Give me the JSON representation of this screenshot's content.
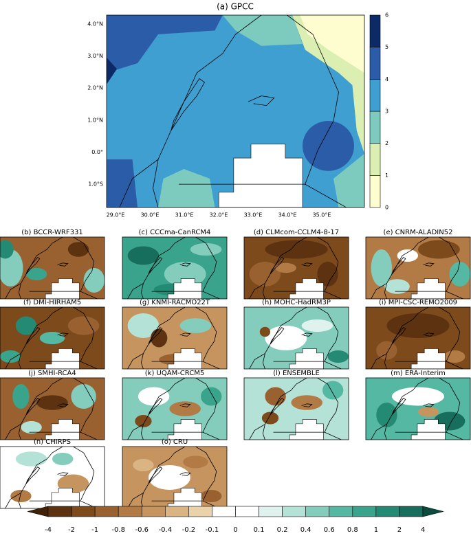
{
  "main_panel": {
    "title": "(a) GPCC",
    "x_labels": [
      "29.0°E",
      "30.0°E",
      "31.0°E",
      "32.0°E",
      "33.0°E",
      "34.0°E",
      "35.0°E"
    ],
    "y_labels": [
      "4.0°N",
      "3.0°N",
      "2.0°N",
      "1.0°N",
      "0.0°",
      "1.0°S"
    ],
    "colorbar": {
      "ticks": [
        0,
        1,
        2,
        3,
        4,
        5,
        6
      ],
      "colors": [
        "#fdfdcf",
        "#dcefb3",
        "#7dcbbf",
        "#3f9fd0",
        "#2b5ca8",
        "#0b2a66"
      ]
    }
  },
  "panels": [
    {
      "title": "(b) BCCR-WRF331"
    },
    {
      "title": "(c) CCCma-CanRCM4"
    },
    {
      "title": "(d) CLMcom-CCLM4-8-17"
    },
    {
      "title": "(e) CNRM-ALADIN52"
    },
    {
      "title": "(f) DMI-HIRHAM5"
    },
    {
      "title": "(g) KNMI-RACMO22T"
    },
    {
      "title": "(h) MOHC-HadRM3P"
    },
    {
      "title": "(i) MPI-CSC-REMO2009"
    },
    {
      "title": "(j) SMHI-RCA4"
    },
    {
      "title": "(k) UQAM-CRCM5"
    },
    {
      "title": "(l) ENSEMBLE"
    },
    {
      "title": "(m) ERA-Interim"
    },
    {
      "title": "(n) CHIRPS"
    },
    {
      "title": "(o) CRU"
    }
  ],
  "colorbar": {
    "ticks": [
      -4,
      -2,
      -1,
      -0.8,
      -0.6,
      -0.4,
      -0.2,
      -0.1,
      0,
      0.1,
      0.2,
      0.4,
      0.6,
      0.8,
      1,
      2,
      4
    ],
    "colors": [
      "#3f2207",
      "#5c3210",
      "#7d4a1c",
      "#9a6130",
      "#b27a45",
      "#c6955f",
      "#dab482",
      "#ead2ab",
      "#ffffff",
      "#ffffff",
      "#dff2ee",
      "#b4e2d6",
      "#84cdbd",
      "#55b8a3",
      "#3aa38c",
      "#258a73",
      "#176e5c",
      "#0c4c3e"
    ]
  }
}
